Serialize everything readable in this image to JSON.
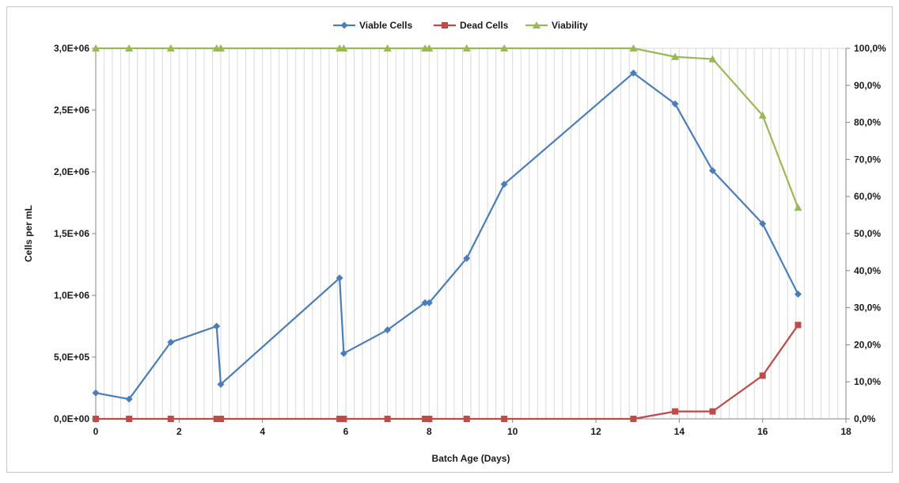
{
  "chart_data": {
    "type": "line",
    "title": "",
    "xlabel": "Batch Age (Days)",
    "ylabel": "Cells per mL",
    "y2label": "",
    "xlim": [
      0,
      18
    ],
    "ylim": [
      0,
      3000000
    ],
    "y2lim": [
      0,
      1
    ],
    "xticks": [
      0,
      2,
      4,
      6,
      8,
      10,
      12,
      14,
      16,
      18
    ],
    "xtick_labels": [
      "0",
      "2",
      "4",
      "6",
      "8",
      "10",
      "12",
      "14",
      "16",
      "18"
    ],
    "yticks": [
      0,
      500000,
      1000000,
      1500000,
      2000000,
      2500000,
      3000000
    ],
    "ytick_labels": [
      "0,0E+00",
      "5,0E+05",
      "1,0E+06",
      "1,5E+06",
      "2,0E+06",
      "2,5E+06",
      "3,0E+06"
    ],
    "y2ticks": [
      0,
      0.1,
      0.2,
      0.3,
      0.4,
      0.5,
      0.6,
      0.7,
      0.8,
      0.9,
      1.0
    ],
    "y2tick_labels": [
      "0,0%",
      "10,0%",
      "20,0%",
      "30,0%",
      "40,0%",
      "50,0%",
      "60,0%",
      "70,0%",
      "80,0%",
      "90,0%",
      "100,0%"
    ],
    "grid": "vertical",
    "legend_position": "top",
    "series": [
      {
        "name": "Viable Cells",
        "color": "#4a7ebb",
        "marker": "diamond",
        "axis": "left",
        "x": [
          0,
          0.8,
          1.8,
          2.9,
          3.0,
          5.85,
          5.95,
          7.0,
          7.9,
          8.0,
          8.9,
          9.8,
          12.9,
          13.9,
          14.8,
          16.0,
          16.85
        ],
        "values": [
          210000,
          160000,
          620000,
          750000,
          280000,
          1140000,
          530000,
          720000,
          940000,
          940000,
          1300000,
          1900000,
          2800000,
          2550000,
          2010000,
          1580000,
          1010000
        ]
      },
      {
        "name": "Dead Cells",
        "color": "#be4b48",
        "marker": "square",
        "axis": "left",
        "x": [
          0,
          0.8,
          1.8,
          2.9,
          3.0,
          5.85,
          5.95,
          7.0,
          7.9,
          8.0,
          8.9,
          9.8,
          12.9,
          13.9,
          14.8,
          16.0,
          16.85
        ],
        "values": [
          0,
          0,
          0,
          0,
          0,
          0,
          0,
          0,
          0,
          0,
          0,
          0,
          0,
          60000,
          60000,
          350000,
          760000
        ]
      },
      {
        "name": "Viability",
        "color": "#98b954",
        "marker": "triangle",
        "axis": "right",
        "x": [
          0,
          0.8,
          1.8,
          2.9,
          3.0,
          5.85,
          5.95,
          7.0,
          7.9,
          8.0,
          8.9,
          9.8,
          12.9,
          13.9,
          14.8,
          16.0,
          16.85
        ],
        "values": [
          1.0,
          1.0,
          1.0,
          1.0,
          1.0,
          1.0,
          1.0,
          1.0,
          1.0,
          1.0,
          1.0,
          1.0,
          1.0,
          0.977,
          0.971,
          0.819,
          0.57
        ]
      }
    ]
  }
}
